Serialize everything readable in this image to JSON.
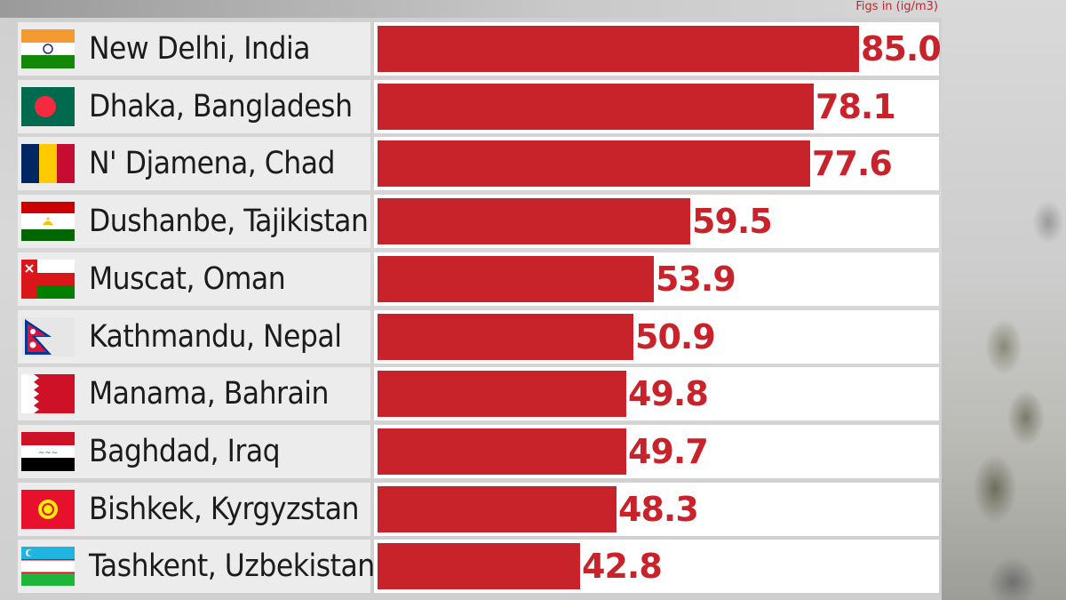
{
  "units_note": "Figs in (ig/m3)",
  "chart_data": {
    "type": "bar",
    "orientation": "horizontal",
    "categories": [
      "New Delhi, India",
      "Dhaka, Bangladesh",
      "N' Djamena, Chad",
      "Dushanbe, Tajikistan",
      "Muscat, Oman",
      "Kathmandu, Nepal",
      "Manama, Bahrain",
      "Baghdad, Iraq",
      "Bishkek, Kyrgyzstan",
      "Tashkent, Uzbekistan"
    ],
    "values": [
      85.0,
      78.1,
      77.6,
      59.5,
      53.9,
      50.9,
      49.8,
      49.7,
      48.3,
      42.8
    ],
    "value_labels": [
      "85.0",
      "78.1",
      "77.6",
      "59.5",
      "53.9",
      "50.9",
      "49.8",
      "49.7",
      "48.3",
      "42.8"
    ],
    "flags": [
      "india-flag",
      "bangladesh-flag",
      "chad-flag",
      "tajikistan-flag",
      "oman-flag",
      "nepal-flag",
      "bahrain-flag",
      "iraq-flag",
      "kyrgyzstan-flag",
      "uzbekistan-flag"
    ],
    "bar_color": "#c8222a",
    "label_color": "#c8222a",
    "track_color": "#ffffff",
    "title": "",
    "xlabel": "",
    "ylabel": "",
    "xlim": [
      0,
      85
    ],
    "grid": false,
    "legend": "none"
  }
}
